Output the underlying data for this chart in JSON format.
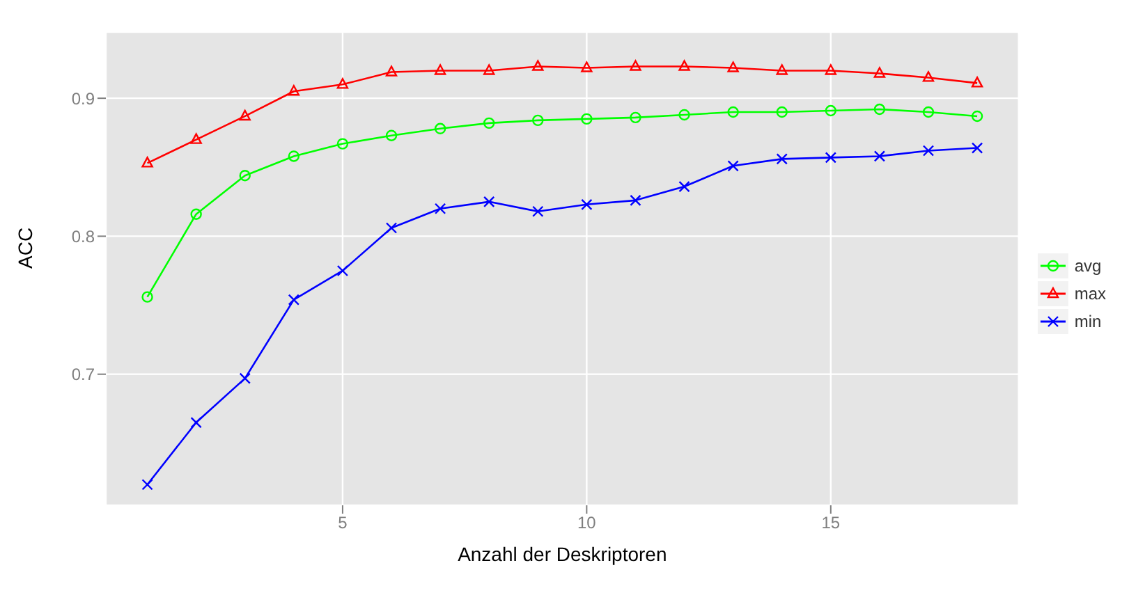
{
  "chart_data": {
    "type": "line",
    "xlabel": "Anzahl der Deskriptoren",
    "ylabel": "ACC",
    "x": [
      1,
      2,
      3,
      4,
      5,
      6,
      7,
      8,
      9,
      10,
      11,
      12,
      13,
      14,
      15,
      16,
      17,
      18
    ],
    "xlim": [
      0.15,
      18.85
    ],
    "xticks": [
      5,
      10,
      15
    ],
    "ylim": [
      0.605,
      0.948
    ],
    "yticks": [
      0.7,
      0.8,
      0.9
    ],
    "grid": true,
    "legend": "right",
    "series": [
      {
        "name": "avg",
        "color": "#00ff00",
        "marker": "circle",
        "values": [
          0.756,
          0.816,
          0.844,
          0.858,
          0.867,
          0.873,
          0.878,
          0.882,
          0.884,
          0.885,
          0.886,
          0.888,
          0.89,
          0.89,
          0.891,
          0.892,
          0.89,
          0.887
        ]
      },
      {
        "name": "max",
        "color": "#ff0000",
        "marker": "triangle",
        "values": [
          0.853,
          0.87,
          0.887,
          0.905,
          0.91,
          0.919,
          0.92,
          0.92,
          0.923,
          0.922,
          0.923,
          0.923,
          0.922,
          0.92,
          0.92,
          0.918,
          0.915,
          0.911
        ]
      },
      {
        "name": "min",
        "color": "#0000ff",
        "marker": "cross",
        "values": [
          0.62,
          0.665,
          0.697,
          0.754,
          0.775,
          0.806,
          0.82,
          0.825,
          0.818,
          0.823,
          0.826,
          0.836,
          0.851,
          0.856,
          0.857,
          0.858,
          0.862,
          0.864
        ]
      }
    ]
  }
}
